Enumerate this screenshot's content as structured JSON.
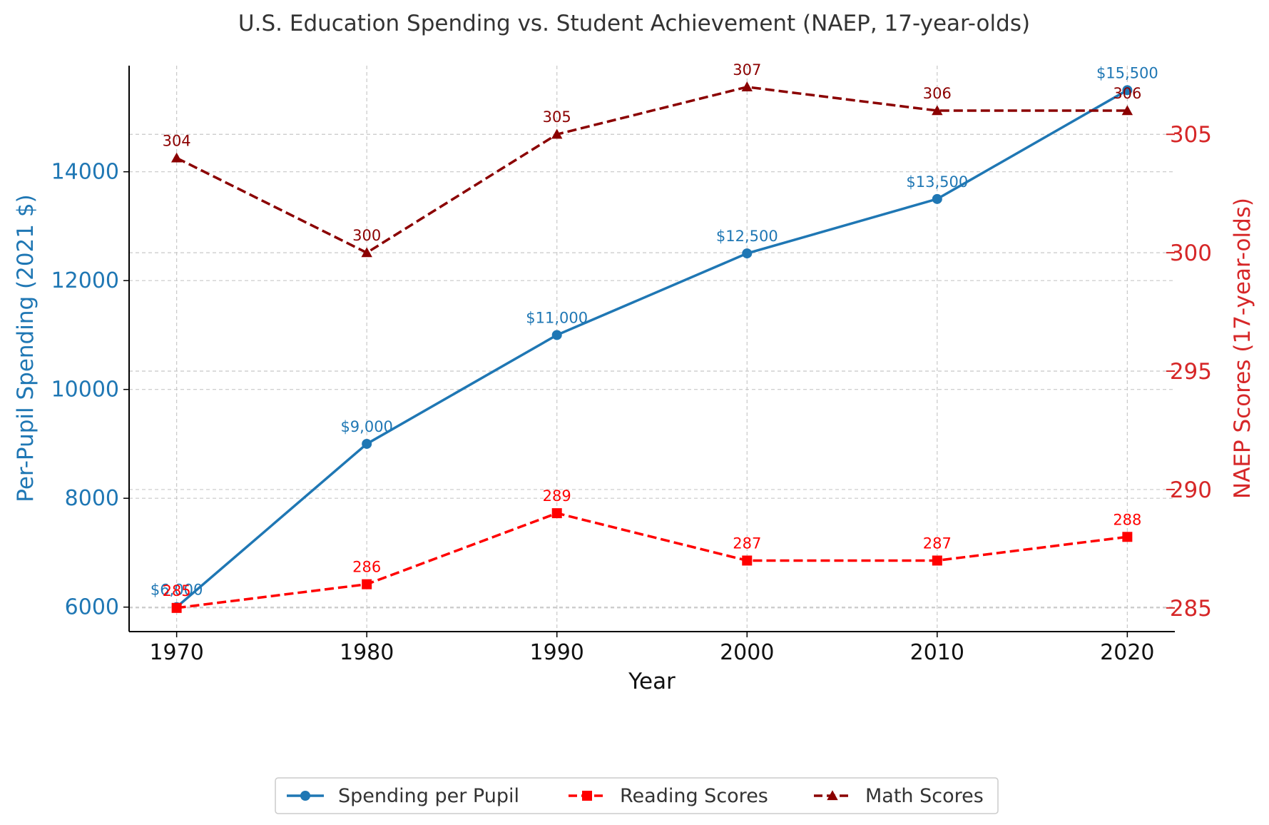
{
  "chart_data": {
    "type": "line",
    "title": "U.S. Education Spending vs. Student Achievement (NAEP, 17-year-olds)",
    "xlabel": "Year",
    "ylabel_left": "Per-Pupil Spending (2021 $)",
    "ylabel_right": "NAEP Scores (17-year-olds)",
    "x": [
      1970,
      1980,
      1990,
      2000,
      2010,
      2020
    ],
    "x_tick_labels": [
      "1970",
      "1980",
      "1990",
      "2000",
      "2010",
      "2020"
    ],
    "xlim": [
      1967.5,
      2022.5
    ],
    "ylim_left": [
      5550,
      15950
    ],
    "ylim_right": [
      284,
      307.9
    ],
    "y_ticks_left": [
      6000,
      8000,
      10000,
      12000,
      14000
    ],
    "y_tick_labels_left": [
      "6000",
      "8000",
      "10000",
      "12000",
      "14000"
    ],
    "y_ticks_right": [
      285,
      290,
      295,
      300,
      305
    ],
    "y_tick_labels_right": [
      "285",
      "290",
      "295",
      "300",
      "305"
    ],
    "grid": true,
    "legend_position": "bottom-center",
    "series": [
      {
        "name": "Spending per Pupil",
        "axis": "left",
        "color": "#1f77b4",
        "marker": "circle",
        "linestyle": "solid",
        "values": [
          6000,
          9000,
          11000,
          12500,
          13500,
          15500
        ],
        "labels": [
          "$6,000",
          "$9,000",
          "$11,000",
          "$12,500",
          "$13,500",
          "$15,500"
        ]
      },
      {
        "name": "Reading Scores",
        "axis": "right",
        "color": "#ff0000",
        "marker": "square",
        "linestyle": "dashed",
        "values": [
          285,
          286,
          289,
          287,
          287,
          288
        ],
        "labels": [
          "285",
          "286",
          "289",
          "287",
          "287",
          "288"
        ]
      },
      {
        "name": "Math Scores",
        "axis": "right",
        "color": "#8b0000",
        "marker": "triangle",
        "linestyle": "dashed",
        "values": [
          304,
          300,
          305,
          307,
          306,
          306
        ],
        "labels": [
          "304",
          "300",
          "305",
          "307",
          "306",
          "306"
        ]
      }
    ],
    "colors": {
      "left_axis": "#1f77b4",
      "right_axis": "#d62728",
      "text": "#333333",
      "grid": "#c8c8c8"
    }
  }
}
